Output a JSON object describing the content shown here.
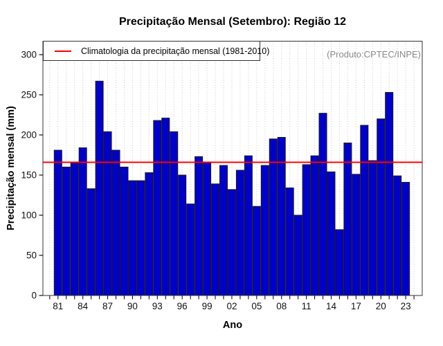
{
  "chart_data": {
    "type": "bar",
    "title": "Precipitação Mensal (Setembro): Região 12",
    "xlabel": "Ano",
    "ylabel": "Precipitação mensal (mm)",
    "legend_label": "Climatologia da precipitação mensal (1981-2010)",
    "annotation": "(Produto:CPTEC/INPE)",
    "years": [
      1981,
      1982,
      1983,
      1984,
      1985,
      1986,
      1987,
      1988,
      1989,
      1990,
      1991,
      1992,
      1993,
      1994,
      1995,
      1996,
      1997,
      1998,
      1999,
      2000,
      2001,
      2002,
      2003,
      2004,
      2005,
      2006,
      2007,
      2008,
      2009,
      2010,
      2011,
      2012,
      2013,
      2014,
      2015,
      2016,
      2017,
      2018,
      2019,
      2020,
      2021,
      2022,
      2023
    ],
    "values": [
      181,
      160,
      165,
      184,
      133,
      267,
      204,
      181,
      160,
      143,
      143,
      153,
      218,
      221,
      204,
      150,
      114,
      173,
      166,
      139,
      162,
      132,
      156,
      174,
      111,
      162,
      195,
      197,
      134,
      100,
      163,
      174,
      227,
      154,
      82,
      190,
      151,
      212,
      168,
      220,
      253,
      149,
      141
    ],
    "climatology_mm": 166,
    "ylim": [
      0,
      300
    ],
    "y_ticks": [
      0,
      50,
      100,
      150,
      200,
      250,
      300
    ],
    "x_tick_labels": [
      "81",
      "84",
      "87",
      "90",
      "93",
      "96",
      "99",
      "02",
      "05",
      "08",
      "11",
      "14",
      "17",
      "20",
      "23"
    ],
    "x_tick_label_step": 3,
    "bar_color": "#0000CD",
    "bar_border": "#1a1a1a",
    "line_color": "#FF0000",
    "grid_color": "#c8c8c8",
    "frame_color": "#333333",
    "tick_color": "#111111",
    "legend_position": "top-left",
    "grid": "vertical-dotted"
  }
}
